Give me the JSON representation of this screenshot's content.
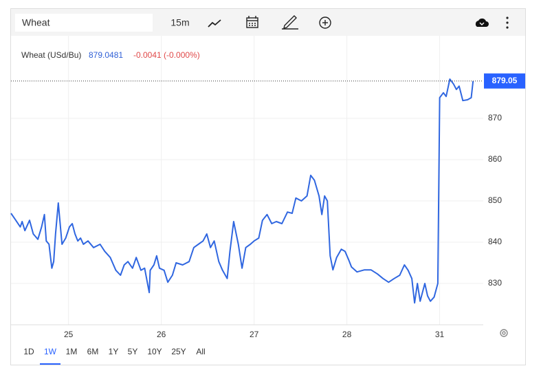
{
  "toolbar": {
    "symbol": "Wheat",
    "interval": "15m"
  },
  "range_buttons": [
    "1D",
    "1W",
    "1M",
    "6M",
    "1Y",
    "5Y",
    "10Y",
    "25Y",
    "All"
  ],
  "active_range_index": 1,
  "chart_data": {
    "type": "line",
    "legend": {
      "value": 879.0481,
      "change": "-0.0041 (-0.000%)"
    },
    "x": [
      0.38,
      0.42,
      0.48,
      0.5,
      0.53,
      0.58,
      0.62,
      0.67,
      0.71,
      0.74,
      0.76,
      0.79,
      0.82,
      0.84,
      0.86,
      0.89,
      0.91,
      0.93,
      0.97,
      1.01,
      1.04,
      1.07,
      1.1,
      1.13,
      1.16,
      1.21,
      1.27,
      1.34,
      1.39,
      1.45,
      1.51,
      1.56,
      1.6,
      1.64,
      1.69,
      1.73,
      1.78,
      1.82,
      1.87,
      1.88,
      1.92,
      1.95,
      1.98,
      2.03,
      2.07,
      2.12,
      2.16,
      2.23,
      2.3,
      2.35,
      2.4,
      2.45,
      2.49,
      2.53,
      2.57,
      2.62,
      2.66,
      2.71,
      2.74,
      2.78,
      2.83,
      2.87,
      2.91,
      2.96,
      3.0,
      3.05,
      3.09,
      3.14,
      3.19,
      3.24,
      3.3,
      3.36,
      3.41,
      3.45,
      3.51,
      3.57,
      3.61,
      3.65,
      3.7,
      3.73,
      3.76,
      3.79,
      3.82,
      3.85,
      3.89,
      3.94,
      3.98,
      4.02,
      4.05,
      4.11,
      4.19,
      4.26,
      4.33,
      4.39,
      4.45,
      4.51,
      4.57,
      4.62,
      4.66,
      4.7,
      4.73,
      4.76,
      4.79,
      4.84,
      4.87,
      4.9,
      4.94,
      4.98,
      5.0,
      5.04,
      5.07,
      5.11,
      5.15,
      5.18,
      5.21,
      5.25,
      5.3,
      5.34,
      5.36
    ],
    "series": [
      {
        "name": "Wheat (USd/Bu)",
        "color": "#2f66e0",
        "values": [
          847,
          845.7,
          843.7,
          845,
          842.8,
          845.3,
          842,
          840.7,
          843.7,
          846.7,
          840.3,
          839.5,
          833.7,
          835.3,
          842,
          849.5,
          844.5,
          839.5,
          841,
          843.7,
          844.5,
          842,
          840.3,
          841,
          839.5,
          840.3,
          838.7,
          839.5,
          837.8,
          836.3,
          833.2,
          832,
          834.5,
          835.3,
          833.7,
          836.3,
          833.2,
          833.7,
          827.8,
          833.2,
          834.5,
          836.7,
          833.7,
          833.2,
          830.3,
          832,
          835,
          834.5,
          835.3,
          838.7,
          839.5,
          840.3,
          842,
          838.7,
          840.3,
          835.3,
          833.2,
          831.2,
          837.8,
          845,
          839.5,
          833.7,
          838.7,
          839.5,
          840.3,
          841,
          845.3,
          846.7,
          844.5,
          845,
          844.5,
          847.3,
          847,
          850.7,
          850,
          851.2,
          856.2,
          855,
          851.2,
          846.7,
          851.2,
          850,
          836.7,
          833.3,
          836.3,
          838.3,
          837.8,
          835.7,
          834,
          832.8,
          833.3,
          833.3,
          832.3,
          831.2,
          830.3,
          831.2,
          832,
          834.5,
          833.2,
          831.2,
          825.3,
          830,
          825.7,
          830,
          827,
          825.7,
          826.7,
          830,
          875,
          876.2,
          875.3,
          879.5,
          878.3,
          877,
          877.8,
          874.3,
          874.5,
          875,
          879.05
        ]
      }
    ],
    "last_price": 879.05,
    "price_tag_color": "#2962ff",
    "xlim": [
      0.38,
      5.47
    ],
    "ylim": [
      820,
      890
    ],
    "xticks": [
      {
        "value": 1,
        "label": "25"
      },
      {
        "value": 2,
        "label": "26"
      },
      {
        "value": 3,
        "label": "27"
      },
      {
        "value": 4,
        "label": "28"
      },
      {
        "value": 5,
        "label": "31"
      }
    ],
    "yticks": [
      830,
      840,
      850,
      860,
      870
    ],
    "grid": true
  }
}
